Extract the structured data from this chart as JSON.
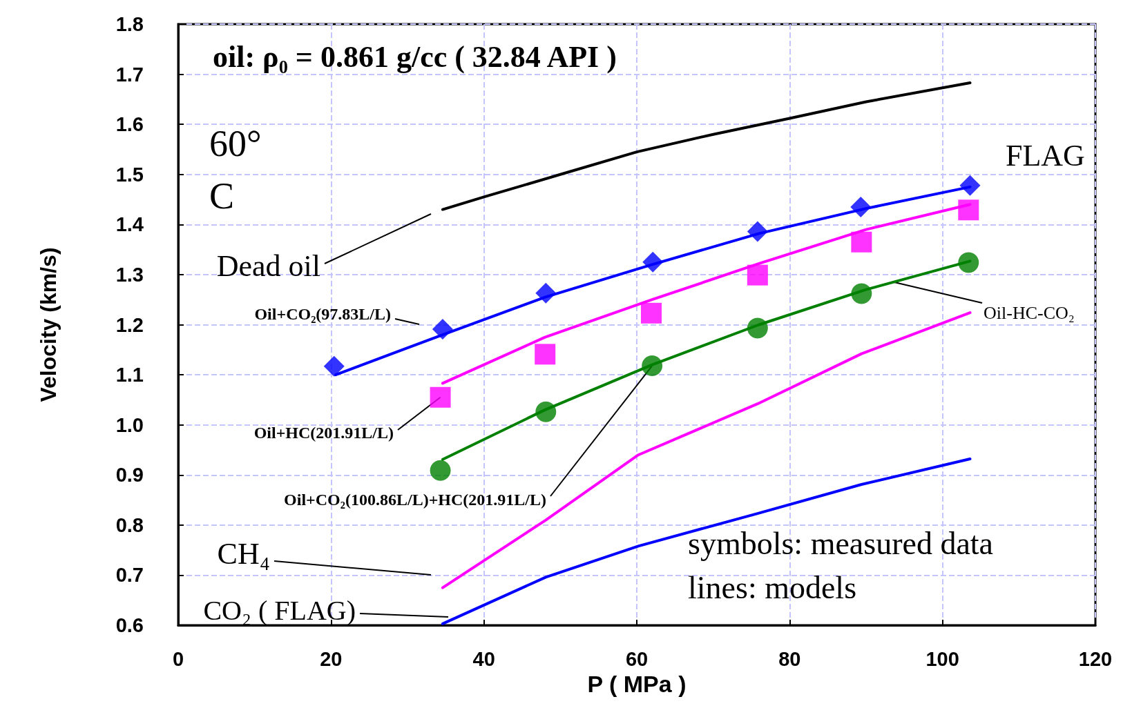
{
  "chart_data": {
    "type": "line",
    "title": "oil: ρ₀ = 0.861 g/cc ( 32.84 API )",
    "xlabel": "P ( MPa )",
    "ylabel": "Velocity (km/s)",
    "xlim": [
      0,
      120
    ],
    "xticks": [
      0,
      20,
      40,
      60,
      80,
      100,
      120
    ],
    "ylim": [
      0.6,
      1.8
    ],
    "yticks": [
      0.6,
      0.7,
      0.8,
      0.9,
      {
        "value": 1,
        "label": "1.0"
      },
      1.1,
      1.2,
      1.3,
      1.4,
      1.5,
      1.6,
      1.7,
      1.8
    ],
    "grid": true,
    "line_style": "solid",
    "series": [
      {
        "color": "#000000",
        "marker": "none",
        "x": [
          34.6,
          40,
          50,
          60,
          70,
          80,
          90,
          103.6
        ],
        "values": [
          1.43,
          1.455,
          1.5,
          1.545,
          1.58,
          1.612,
          1.645,
          1.683
        ]
      },
      {
        "color": "#0000ff",
        "marker": "none",
        "x": [
          20.6,
          34.6,
          48,
          62,
          76,
          90,
          103.6
        ],
        "values": [
          1.1,
          1.18,
          1.255,
          1.32,
          1.382,
          1.432,
          1.475
        ]
      },
      {
        "type": "scatter",
        "color": "#0000ff",
        "marker": "diamond",
        "x": [
          20.4,
          34.6,
          48.1,
          62.1,
          75.8,
          89.3,
          103.6
        ],
        "values": [
          1.117,
          1.191,
          1.263,
          1.325,
          1.386,
          1.435,
          1.478
        ]
      },
      {
        "color": "#ff00ff",
        "marker": "none",
        "x": [
          34.6,
          48,
          62,
          76,
          90,
          103.6
        ],
        "values": [
          1.083,
          1.175,
          1.25,
          1.322,
          1.39,
          1.44
        ]
      },
      {
        "type": "scatter",
        "color": "#ff00ff",
        "marker": "square",
        "x": [
          34.3,
          48,
          61.9,
          75.8,
          89.4,
          103.4
        ],
        "values": [
          1.055,
          1.141,
          1.223,
          1.299,
          1.365,
          1.429
        ]
      },
      {
        "color": "#008000",
        "marker": "none",
        "x": [
          34.6,
          48,
          62,
          76,
          90,
          103.6
        ],
        "values": [
          0.931,
          1.03,
          1.12,
          1.2,
          1.27,
          1.327
        ]
      },
      {
        "type": "scatter",
        "color": "#008000",
        "marker": "circle",
        "x": [
          34.3,
          48.1,
          62,
          75.8,
          89.4,
          103.4
        ],
        "values": [
          0.909,
          1.026,
          1.118,
          1.193,
          1.262,
          1.324
        ]
      },
      {
        "color": "#ff00ff",
        "marker": "none",
        "x": [
          34.6,
          48.1,
          60.2,
          75.8,
          89.4,
          103.6
        ],
        "values": [
          0.675,
          0.81,
          0.94,
          1.042,
          1.142,
          1.224
        ]
      },
      {
        "color": "#0000ff",
        "marker": "none",
        "x": [
          34.6,
          48.1,
          60.2,
          75.8,
          89.4,
          103.6
        ],
        "values": [
          0.603,
          0.696,
          0.758,
          0.823,
          0.881,
          0.932
        ]
      }
    ],
    "annotations": [
      "60°\nC",
      "FLAG",
      "symbols: measured data\nlines: models",
      "Dead oil",
      "Oil+CO₂(97.83L/L)",
      {
        "text": "Oil+HC(201.91L/L)",
        "x": 34.3,
        "y": 1.055
      },
      {
        "text": "Oil+CO₂(100.86L/L)+HC(201.91L/L)",
        "x": 62,
        "y": 1.118
      },
      "CH₄",
      "CO₂ ( FLAG)",
      {
        "text": "Oil-HC-CO₂",
        "x": 93.6,
        "y": 1.285
      }
    ]
  }
}
